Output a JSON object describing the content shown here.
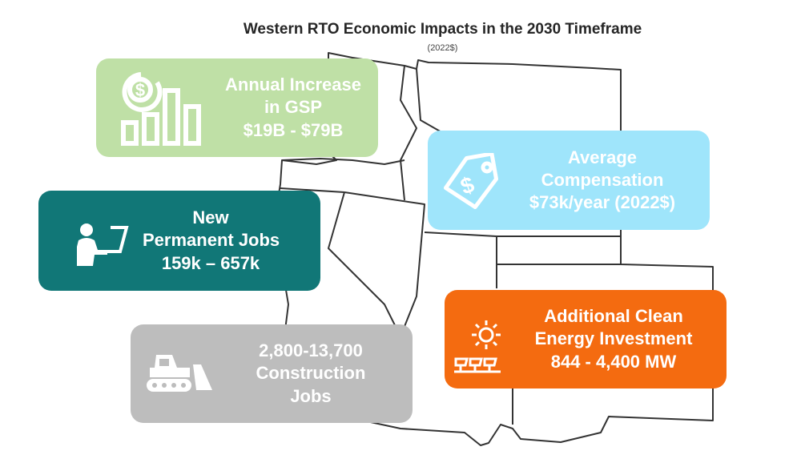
{
  "title": "Western RTO Economic Impacts in the 2030 Timeframe",
  "subtitle": "(2022$)",
  "cards": {
    "gsp": {
      "lines": [
        "Annual Increase",
        "in GSP",
        "$19B - $79B"
      ],
      "icon": "money-bar-chart-icon",
      "color": "#bfe0a6"
    },
    "compensation": {
      "lines": [
        "Average",
        "Compensation",
        "$73k/year (2022$)"
      ],
      "icon": "price-tag-icon",
      "color": "#9fe5fb"
    },
    "jobs": {
      "lines": [
        "New",
        "Permanent Jobs",
        "159k – 657k"
      ],
      "icon": "worker-at-computer-icon",
      "color": "#117777"
    },
    "clean_energy": {
      "lines": [
        "Additional Clean",
        "Energy Investment",
        "844 - 4,400 MW"
      ],
      "icon": "sun-solar-panels-icon",
      "color": "#f46b10"
    },
    "construction": {
      "lines": [
        "2,800-13,700",
        "Construction",
        "Jobs"
      ],
      "icon": "bulldozer-icon",
      "color": "#bdbdbd"
    }
  }
}
